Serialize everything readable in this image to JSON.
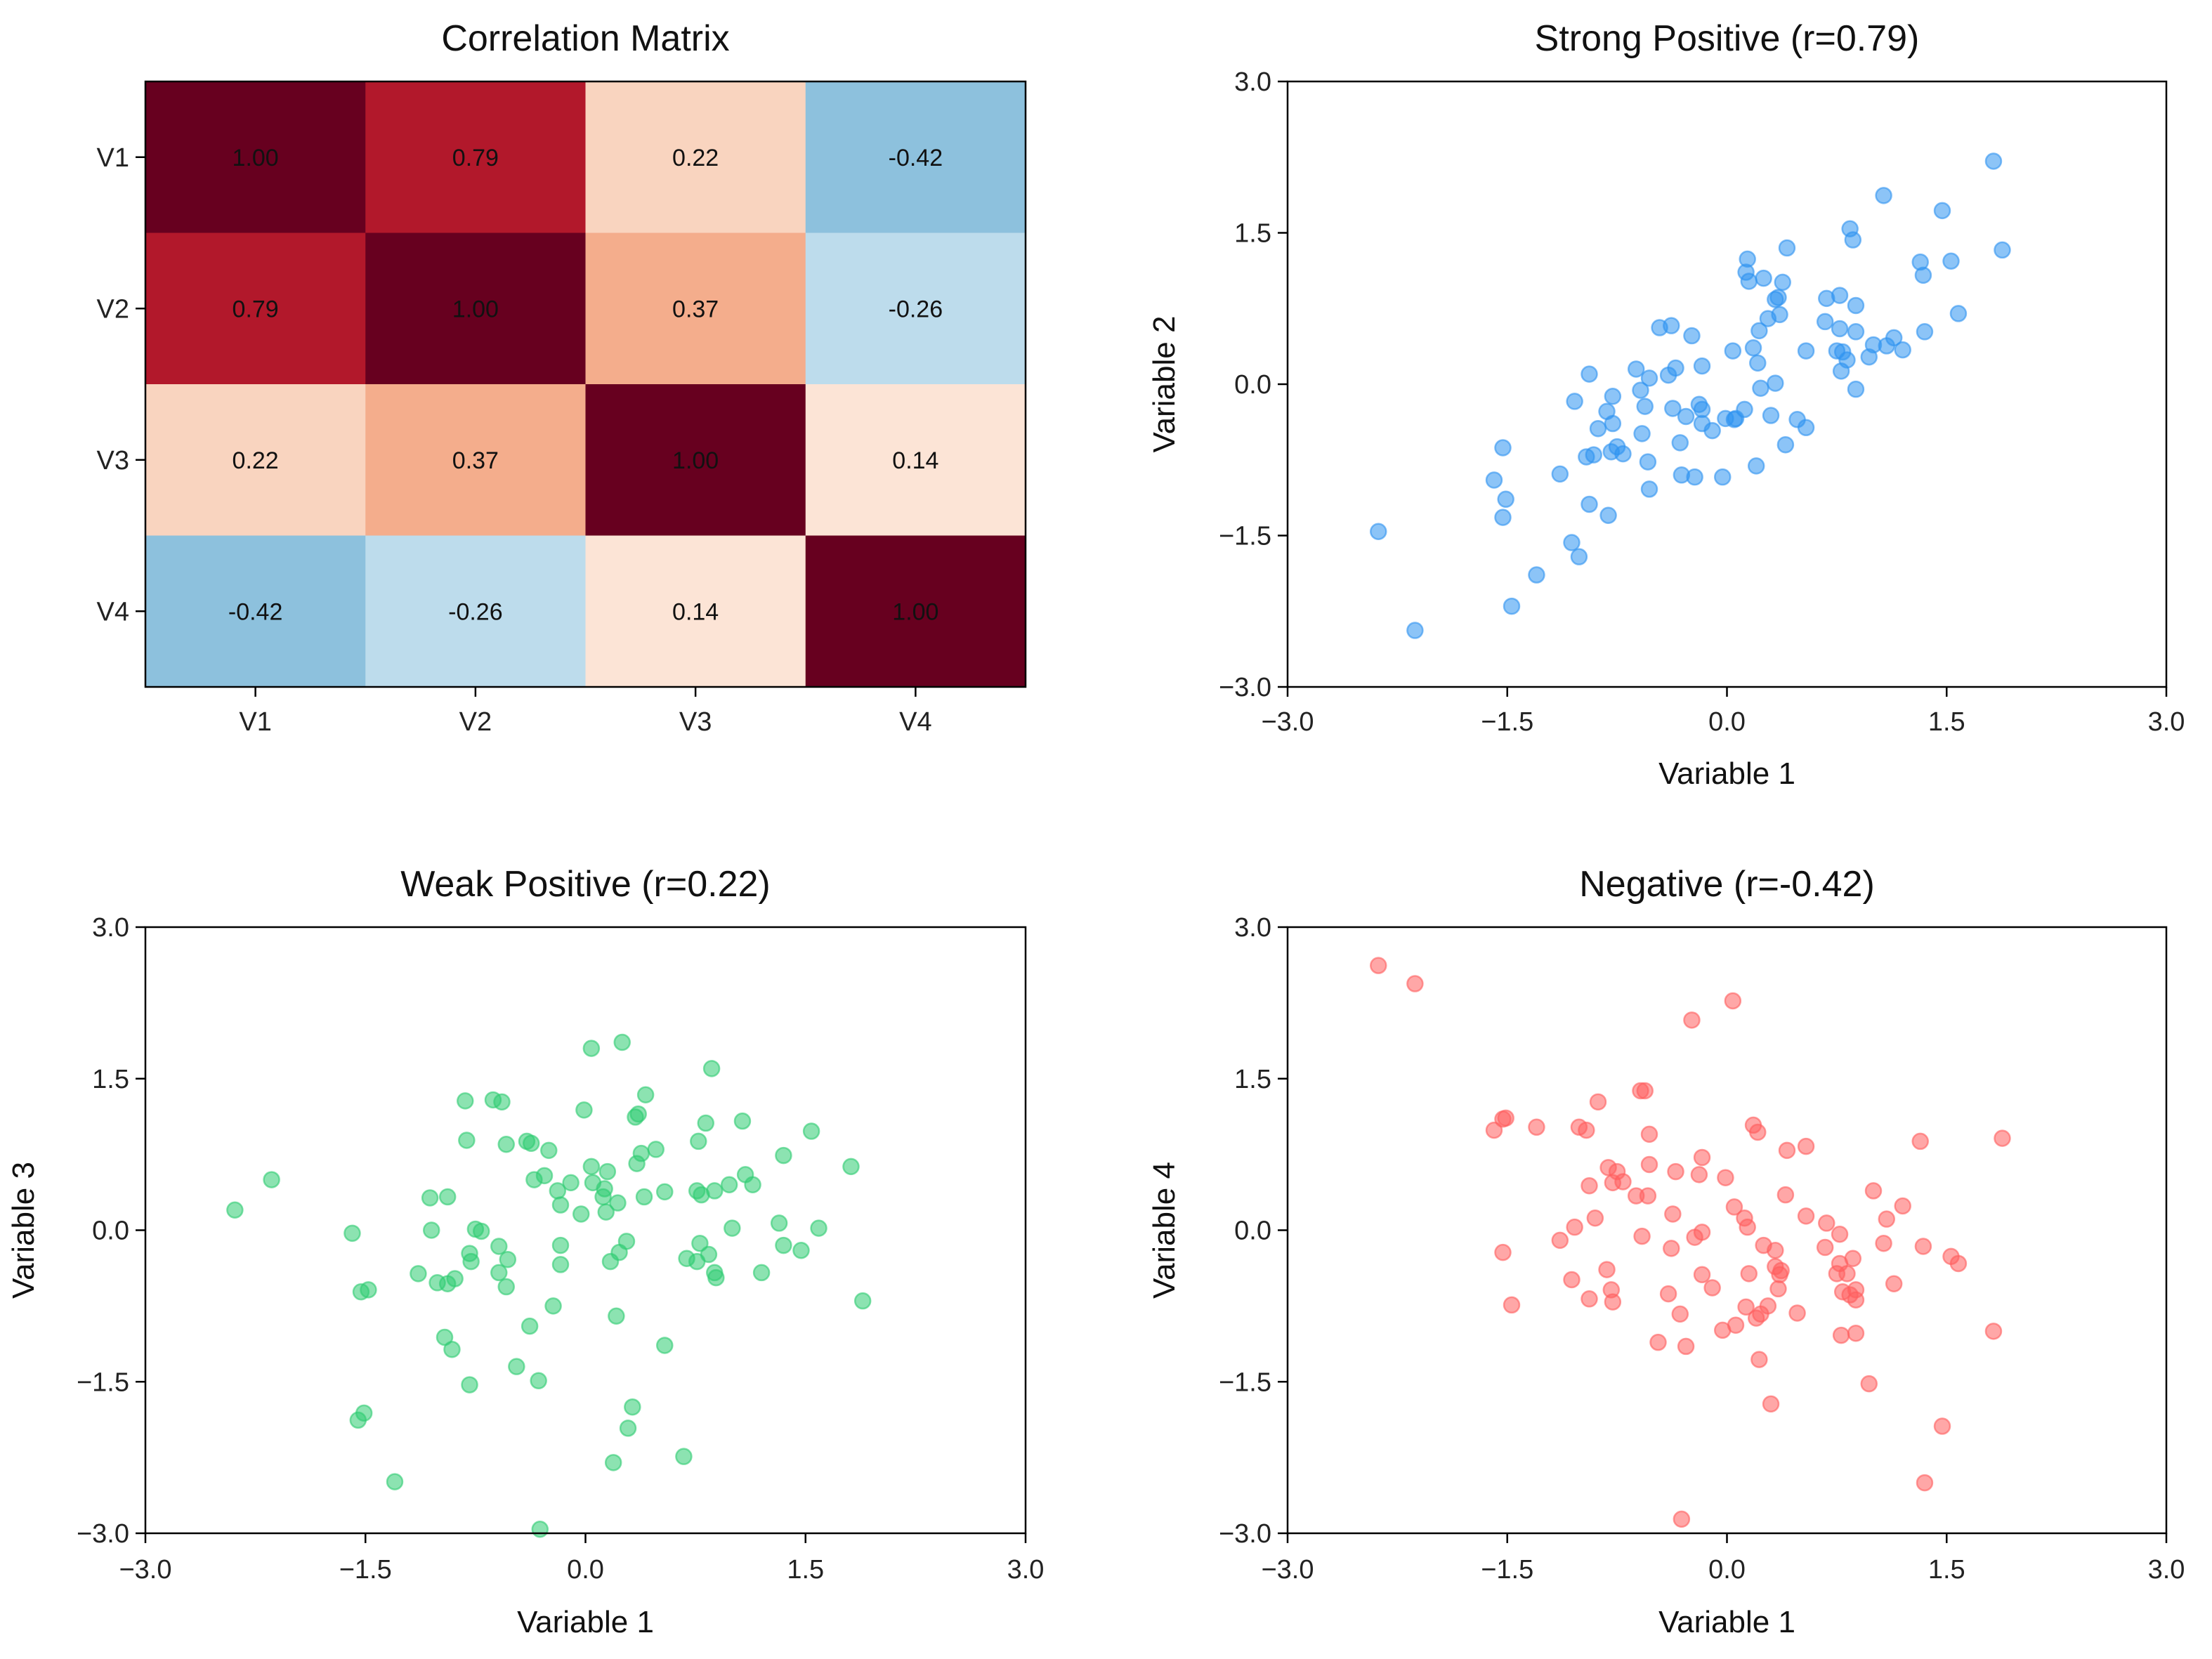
{
  "chart_data": [
    {
      "type": "heatmap",
      "title": "Correlation Matrix",
      "x_categories": [
        "V1",
        "V2",
        "V3",
        "V4"
      ],
      "y_categories": [
        "V1",
        "V2",
        "V3",
        "V4"
      ],
      "values": [
        [
          1.0,
          0.79,
          0.22,
          -0.42
        ],
        [
          0.79,
          1.0,
          0.37,
          -0.26
        ],
        [
          0.22,
          0.37,
          1.0,
          0.14
        ],
        [
          -0.42,
          -0.26,
          0.14,
          1.0
        ]
      ],
      "value_labels": [
        [
          "1.00",
          "0.79",
          "0.22",
          "-0.42"
        ],
        [
          "0.79",
          "1.00",
          "0.37",
          "-0.26"
        ],
        [
          "0.22",
          "0.37",
          "1.00",
          "0.14"
        ],
        [
          "-0.42",
          "-0.26",
          "0.14",
          "1.00"
        ]
      ],
      "colormap": "RdBu_r",
      "vmin": -1,
      "vmax": 1,
      "cell_colors": {
        "1.00": "#67001f",
        "0.79": "#b2182b",
        "0.37": "#f4ad8c",
        "0.22": "#f9d4bf",
        "0.14": "#fce4d6",
        "-0.26": "#bddcec",
        "-0.42": "#8dc1dd"
      }
    },
    {
      "type": "scatter",
      "title": "Strong Positive (r=0.79)",
      "xlabel": "Variable 1",
      "ylabel": "Variable 2",
      "xlim": [
        -3,
        3
      ],
      "ylim": [
        -3,
        3
      ],
      "xticks": [
        -3,
        -1.5,
        0,
        1.5,
        3
      ],
      "yticks": [
        -3,
        -1.5,
        0,
        1.5,
        3
      ],
      "xtick_labels": [
        "−3.0",
        "−1.5",
        "0.0",
        "1.5",
        "3.0"
      ],
      "ytick_labels": [
        "−3.0",
        "−1.5",
        "0.0",
        "1.5",
        "3.0"
      ],
      "color": "#2E93F0",
      "points": [
        [
          1.82,
          2.21
        ],
        [
          1.07,
          1.87
        ],
        [
          1.47,
          1.72
        ],
        [
          0.84,
          1.54
        ],
        [
          0.86,
          1.43
        ],
        [
          0.41,
          1.35
        ],
        [
          1.88,
          1.33
        ],
        [
          0.14,
          1.24
        ],
        [
          1.32,
          1.21
        ],
        [
          1.53,
          1.22
        ],
        [
          1.34,
          1.08
        ],
        [
          0.13,
          1.11
        ],
        [
          0.15,
          1.02
        ],
        [
          0.25,
          1.05
        ],
        [
          0.38,
          1.01
        ],
        [
          0.35,
          0.86
        ],
        [
          0.33,
          0.84
        ],
        [
          0.68,
          0.85
        ],
        [
          0.77,
          0.88
        ],
        [
          0.88,
          0.78
        ],
        [
          0.36,
          0.69
        ],
        [
          0.28,
          0.65
        ],
        [
          0.67,
          0.62
        ],
        [
          1.58,
          0.7
        ],
        [
          0.77,
          0.55
        ],
        [
          0.88,
          0.52
        ],
        [
          0.22,
          0.53
        ],
        [
          1.35,
          0.52
        ],
        [
          -0.46,
          0.56
        ],
        [
          -0.38,
          0.58
        ],
        [
          -0.24,
          0.48
        ],
        [
          0.18,
          0.36
        ],
        [
          0.04,
          0.33
        ],
        [
          0.54,
          0.33
        ],
        [
          0.75,
          0.33
        ],
        [
          0.79,
          0.32
        ],
        [
          0.82,
          0.24
        ],
        [
          1.0,
          0.39
        ],
        [
          1.09,
          0.38
        ],
        [
          1.14,
          0.46
        ],
        [
          1.2,
          0.34
        ],
        [
          0.97,
          0.27
        ],
        [
          0.21,
          0.21
        ],
        [
          0.78,
          0.13
        ],
        [
          0.88,
          -0.05
        ],
        [
          -0.94,
          0.1
        ],
        [
          -0.62,
          0.15
        ],
        [
          -0.53,
          0.06
        ],
        [
          -0.4,
          0.09
        ],
        [
          -0.35,
          0.16
        ],
        [
          -0.17,
          0.18
        ],
        [
          -0.59,
          -0.06
        ],
        [
          0.33,
          0.01
        ],
        [
          0.23,
          -0.04
        ],
        [
          -1.04,
          -0.17
        ],
        [
          -0.78,
          -0.12
        ],
        [
          -0.56,
          -0.22
        ],
        [
          -0.82,
          -0.27
        ],
        [
          -0.78,
          -0.39
        ],
        [
          -0.88,
          -0.44
        ],
        [
          -0.37,
          -0.24
        ],
        [
          -0.28,
          -0.32
        ],
        [
          -0.19,
          -0.2
        ],
        [
          -0.17,
          -0.25
        ],
        [
          -0.17,
          -0.39
        ],
        [
          -0.1,
          -0.46
        ],
        [
          -0.01,
          -0.34
        ],
        [
          0.05,
          -0.35
        ],
        [
          0.06,
          -0.34
        ],
        [
          0.12,
          -0.25
        ],
        [
          0.3,
          -0.31
        ],
        [
          0.48,
          -0.35
        ],
        [
          0.54,
          -0.43
        ],
        [
          -0.58,
          -0.49
        ],
        [
          -0.32,
          -0.58
        ],
        [
          0.4,
          -0.6
        ],
        [
          -1.53,
          -0.63
        ],
        [
          -0.96,
          -0.72
        ],
        [
          -0.91,
          -0.7
        ],
        [
          -0.79,
          -0.67
        ],
        [
          -0.75,
          -0.62
        ],
        [
          -0.71,
          -0.69
        ],
        [
          -0.54,
          -0.77
        ],
        [
          -1.14,
          -0.89
        ],
        [
          -1.59,
          -0.95
        ],
        [
          -0.31,
          -0.9
        ],
        [
          -0.22,
          -0.92
        ],
        [
          -0.03,
          -0.92
        ],
        [
          0.2,
          -0.81
        ],
        [
          -0.53,
          -1.04
        ],
        [
          -1.51,
          -1.14
        ],
        [
          -1.53,
          -1.32
        ],
        [
          -0.94,
          -1.19
        ],
        [
          -0.81,
          -1.3
        ],
        [
          -2.38,
          -1.46
        ],
        [
          -1.06,
          -1.57
        ],
        [
          -1.01,
          -1.71
        ],
        [
          -1.3,
          -1.89
        ],
        [
          -1.47,
          -2.2
        ],
        [
          -2.13,
          -2.44
        ]
      ]
    },
    {
      "type": "scatter",
      "title": "Weak Positive (r=0.22)",
      "xlabel": "Variable 1",
      "ylabel": "Variable 3",
      "xlim": [
        -3,
        3
      ],
      "ylim": [
        -3,
        3
      ],
      "xticks": [
        -3,
        -1.5,
        0,
        1.5,
        3
      ],
      "yticks": [
        -3,
        -1.5,
        0,
        1.5,
        3
      ],
      "xtick_labels": [
        "−3.0",
        "−1.5",
        "0.0",
        "1.5",
        "3.0"
      ],
      "ytick_labels": [
        "−3.0",
        "−1.5",
        "0.0",
        "1.5",
        "3.0"
      ],
      "color": "#2ECC71",
      "points": [
        [
          0.04,
          1.8
        ],
        [
          0.25,
          1.86
        ],
        [
          0.86,
          1.6
        ],
        [
          0.41,
          1.34
        ],
        [
          -0.82,
          1.28
        ],
        [
          -0.63,
          1.29
        ],
        [
          -0.57,
          1.27
        ],
        [
          -0.01,
          1.19
        ],
        [
          0.34,
          1.12
        ],
        [
          0.36,
          1.15
        ],
        [
          0.82,
          1.06
        ],
        [
          1.07,
          1.08
        ],
        [
          1.54,
          0.98
        ],
        [
          -0.81,
          0.89
        ],
        [
          -0.54,
          0.85
        ],
        [
          -0.4,
          0.88
        ],
        [
          -0.37,
          0.86
        ],
        [
          -0.25,
          0.79
        ],
        [
          0.77,
          0.88
        ],
        [
          0.38,
          0.76
        ],
        [
          0.48,
          0.8
        ],
        [
          0.35,
          0.66
        ],
        [
          1.35,
          0.74
        ],
        [
          1.81,
          0.63
        ],
        [
          0.04,
          0.63
        ],
        [
          0.15,
          0.58
        ],
        [
          -0.35,
          0.5
        ],
        [
          -0.28,
          0.54
        ],
        [
          -0.1,
          0.47
        ],
        [
          0.05,
          0.47
        ],
        [
          0.13,
          0.41
        ],
        [
          0.12,
          0.33
        ],
        [
          -0.19,
          0.39
        ],
        [
          -0.17,
          0.25
        ],
        [
          0.22,
          0.27
        ],
        [
          0.14,
          0.18
        ],
        [
          -0.03,
          0.16
        ],
        [
          0.4,
          0.33
        ],
        [
          0.54,
          0.38
        ],
        [
          0.76,
          0.39
        ],
        [
          0.79,
          0.35
        ],
        [
          0.88,
          0.39
        ],
        [
          0.98,
          0.45
        ],
        [
          1.09,
          0.55
        ],
        [
          1.14,
          0.45
        ],
        [
          -2.14,
          0.5
        ],
        [
          -2.39,
          0.2
        ],
        [
          -1.06,
          0.32
        ],
        [
          -0.94,
          0.33
        ],
        [
          -1.59,
          -0.03
        ],
        [
          -1.05,
          0.0
        ],
        [
          -0.75,
          0.01
        ],
        [
          -0.71,
          -0.01
        ],
        [
          1.0,
          0.02
        ],
        [
          1.32,
          0.07
        ],
        [
          1.59,
          0.02
        ],
        [
          -0.59,
          -0.16
        ],
        [
          -0.79,
          -0.23
        ],
        [
          -0.78,
          -0.31
        ],
        [
          -0.53,
          -0.29
        ],
        [
          -0.17,
          -0.15
        ],
        [
          -0.17,
          -0.34
        ],
        [
          0.28,
          -0.11
        ],
        [
          0.23,
          -0.22
        ],
        [
          0.17,
          -0.31
        ],
        [
          0.78,
          -0.13
        ],
        [
          0.84,
          -0.24
        ],
        [
          0.69,
          -0.28
        ],
        [
          0.76,
          -0.31
        ],
        [
          1.35,
          -0.15
        ],
        [
          1.47,
          -0.2
        ],
        [
          0.88,
          -0.42
        ],
        [
          0.89,
          -0.47
        ],
        [
          1.2,
          -0.42
        ],
        [
          -0.59,
          -0.42
        ],
        [
          -0.54,
          -0.56
        ],
        [
          -1.14,
          -0.43
        ],
        [
          -1.01,
          -0.52
        ],
        [
          -0.94,
          -0.53
        ],
        [
          -0.89,
          -0.48
        ],
        [
          -1.53,
          -0.61
        ],
        [
          -1.48,
          -0.59
        ],
        [
          1.89,
          -0.7
        ],
        [
          -0.22,
          -0.75
        ],
        [
          0.21,
          -0.85
        ],
        [
          -0.38,
          -0.95
        ],
        [
          -0.96,
          -1.06
        ],
        [
          -0.91,
          -1.18
        ],
        [
          0.54,
          -1.14
        ],
        [
          -0.47,
          -1.35
        ],
        [
          -0.32,
          -1.49
        ],
        [
          -0.79,
          -1.53
        ],
        [
          0.32,
          -1.75
        ],
        [
          -1.51,
          -1.81
        ],
        [
          -1.55,
          -1.88
        ],
        [
          0.29,
          -1.96
        ],
        [
          0.67,
          -2.24
        ],
        [
          0.19,
          -2.3
        ],
        [
          -1.3,
          -2.49
        ],
        [
          -0.31,
          -2.96
        ]
      ]
    },
    {
      "type": "scatter",
      "title": "Negative (r=-0.42)",
      "xlabel": "Variable 1",
      "ylabel": "Variable 4",
      "xlim": [
        -3,
        3
      ],
      "ylim": [
        -3,
        3
      ],
      "xticks": [
        -3,
        -1.5,
        0,
        1.5,
        3
      ],
      "yticks": [
        -3,
        -1.5,
        0,
        1.5,
        3
      ],
      "xtick_labels": [
        "−3.0",
        "−1.5",
        "0.0",
        "1.5",
        "3.0"
      ],
      "ytick_labels": [
        "−3.0",
        "−1.5",
        "0.0",
        "1.5",
        "3.0"
      ],
      "color": "#FF5E5E",
      "points": [
        [
          -2.38,
          2.62
        ],
        [
          -2.13,
          2.44
        ],
        [
          0.04,
          2.27
        ],
        [
          -0.24,
          2.08
        ],
        [
          -0.59,
          1.38
        ],
        [
          -0.56,
          1.38
        ],
        [
          -0.88,
          1.27
        ],
        [
          -1.53,
          1.1
        ],
        [
          -1.51,
          1.11
        ],
        [
          -1.59,
          0.99
        ],
        [
          -1.3,
          1.02
        ],
        [
          -1.01,
          1.02
        ],
        [
          -0.96,
          0.99
        ],
        [
          -0.53,
          0.95
        ],
        [
          0.18,
          1.04
        ],
        [
          0.21,
          0.97
        ],
        [
          0.41,
          0.79
        ],
        [
          0.54,
          0.83
        ],
        [
          1.32,
          0.88
        ],
        [
          1.88,
          0.91
        ],
        [
          -0.17,
          0.72
        ],
        [
          -0.53,
          0.65
        ],
        [
          -0.81,
          0.62
        ],
        [
          -0.75,
          0.58
        ],
        [
          -0.35,
          0.58
        ],
        [
          -0.19,
          0.55
        ],
        [
          -0.01,
          0.52
        ],
        [
          -0.94,
          0.44
        ],
        [
          -0.78,
          0.47
        ],
        [
          -0.71,
          0.48
        ],
        [
          -0.62,
          0.34
        ],
        [
          -0.54,
          0.34
        ],
        [
          0.4,
          0.35
        ],
        [
          1.0,
          0.39
        ],
        [
          1.2,
          0.24
        ],
        [
          0.05,
          0.23
        ],
        [
          0.12,
          0.12
        ],
        [
          0.14,
          0.03
        ],
        [
          0.54,
          0.14
        ],
        [
          0.68,
          0.07
        ],
        [
          1.09,
          0.11
        ],
        [
          -0.37,
          0.16
        ],
        [
          -0.9,
          0.12
        ],
        [
          -1.04,
          0.03
        ],
        [
          -1.14,
          -0.1
        ],
        [
          -0.58,
          -0.06
        ],
        [
          -0.22,
          -0.07
        ],
        [
          -0.17,
          -0.02
        ],
        [
          -0.38,
          -0.18
        ],
        [
          -1.53,
          -0.22
        ],
        [
          0.77,
          -0.04
        ],
        [
          0.25,
          -0.15
        ],
        [
          0.33,
          -0.2
        ],
        [
          0.67,
          -0.17
        ],
        [
          1.07,
          -0.13
        ],
        [
          1.34,
          -0.16
        ],
        [
          1.53,
          -0.26
        ],
        [
          1.58,
          -0.33
        ],
        [
          0.86,
          -0.28
        ],
        [
          0.77,
          -0.33
        ],
        [
          0.75,
          -0.43
        ],
        [
          0.82,
          -0.43
        ],
        [
          0.33,
          -0.36
        ],
        [
          0.37,
          -0.4
        ],
        [
          0.36,
          -0.44
        ],
        [
          0.15,
          -0.43
        ],
        [
          -0.17,
          -0.44
        ],
        [
          -0.82,
          -0.39
        ],
        [
          -1.06,
          -0.49
        ],
        [
          -0.79,
          -0.59
        ],
        [
          -0.1,
          -0.57
        ],
        [
          0.35,
          -0.58
        ],
        [
          -0.4,
          -0.63
        ],
        [
          1.14,
          -0.53
        ],
        [
          0.79,
          -0.61
        ],
        [
          0.88,
          -0.59
        ],
        [
          0.84,
          -0.64
        ],
        [
          0.88,
          -0.69
        ],
        [
          -0.94,
          -0.68
        ],
        [
          -0.78,
          -0.71
        ],
        [
          -1.47,
          -0.74
        ],
        [
          0.13,
          -0.76
        ],
        [
          0.28,
          -0.75
        ],
        [
          0.23,
          -0.83
        ],
        [
          0.2,
          -0.87
        ],
        [
          0.48,
          -0.82
        ],
        [
          -0.32,
          -0.83
        ],
        [
          0.06,
          -0.94
        ],
        [
          -0.03,
          -0.99
        ],
        [
          0.78,
          -1.04
        ],
        [
          0.88,
          -1.02
        ],
        [
          1.82,
          -1.0
        ],
        [
          -0.47,
          -1.11
        ],
        [
          -0.28,
          -1.15
        ],
        [
          0.22,
          -1.28
        ],
        [
          0.97,
          -1.52
        ],
        [
          0.3,
          -1.72
        ],
        [
          1.47,
          -1.94
        ],
        [
          1.35,
          -2.5
        ],
        [
          -0.31,
          -2.86
        ]
      ]
    }
  ]
}
